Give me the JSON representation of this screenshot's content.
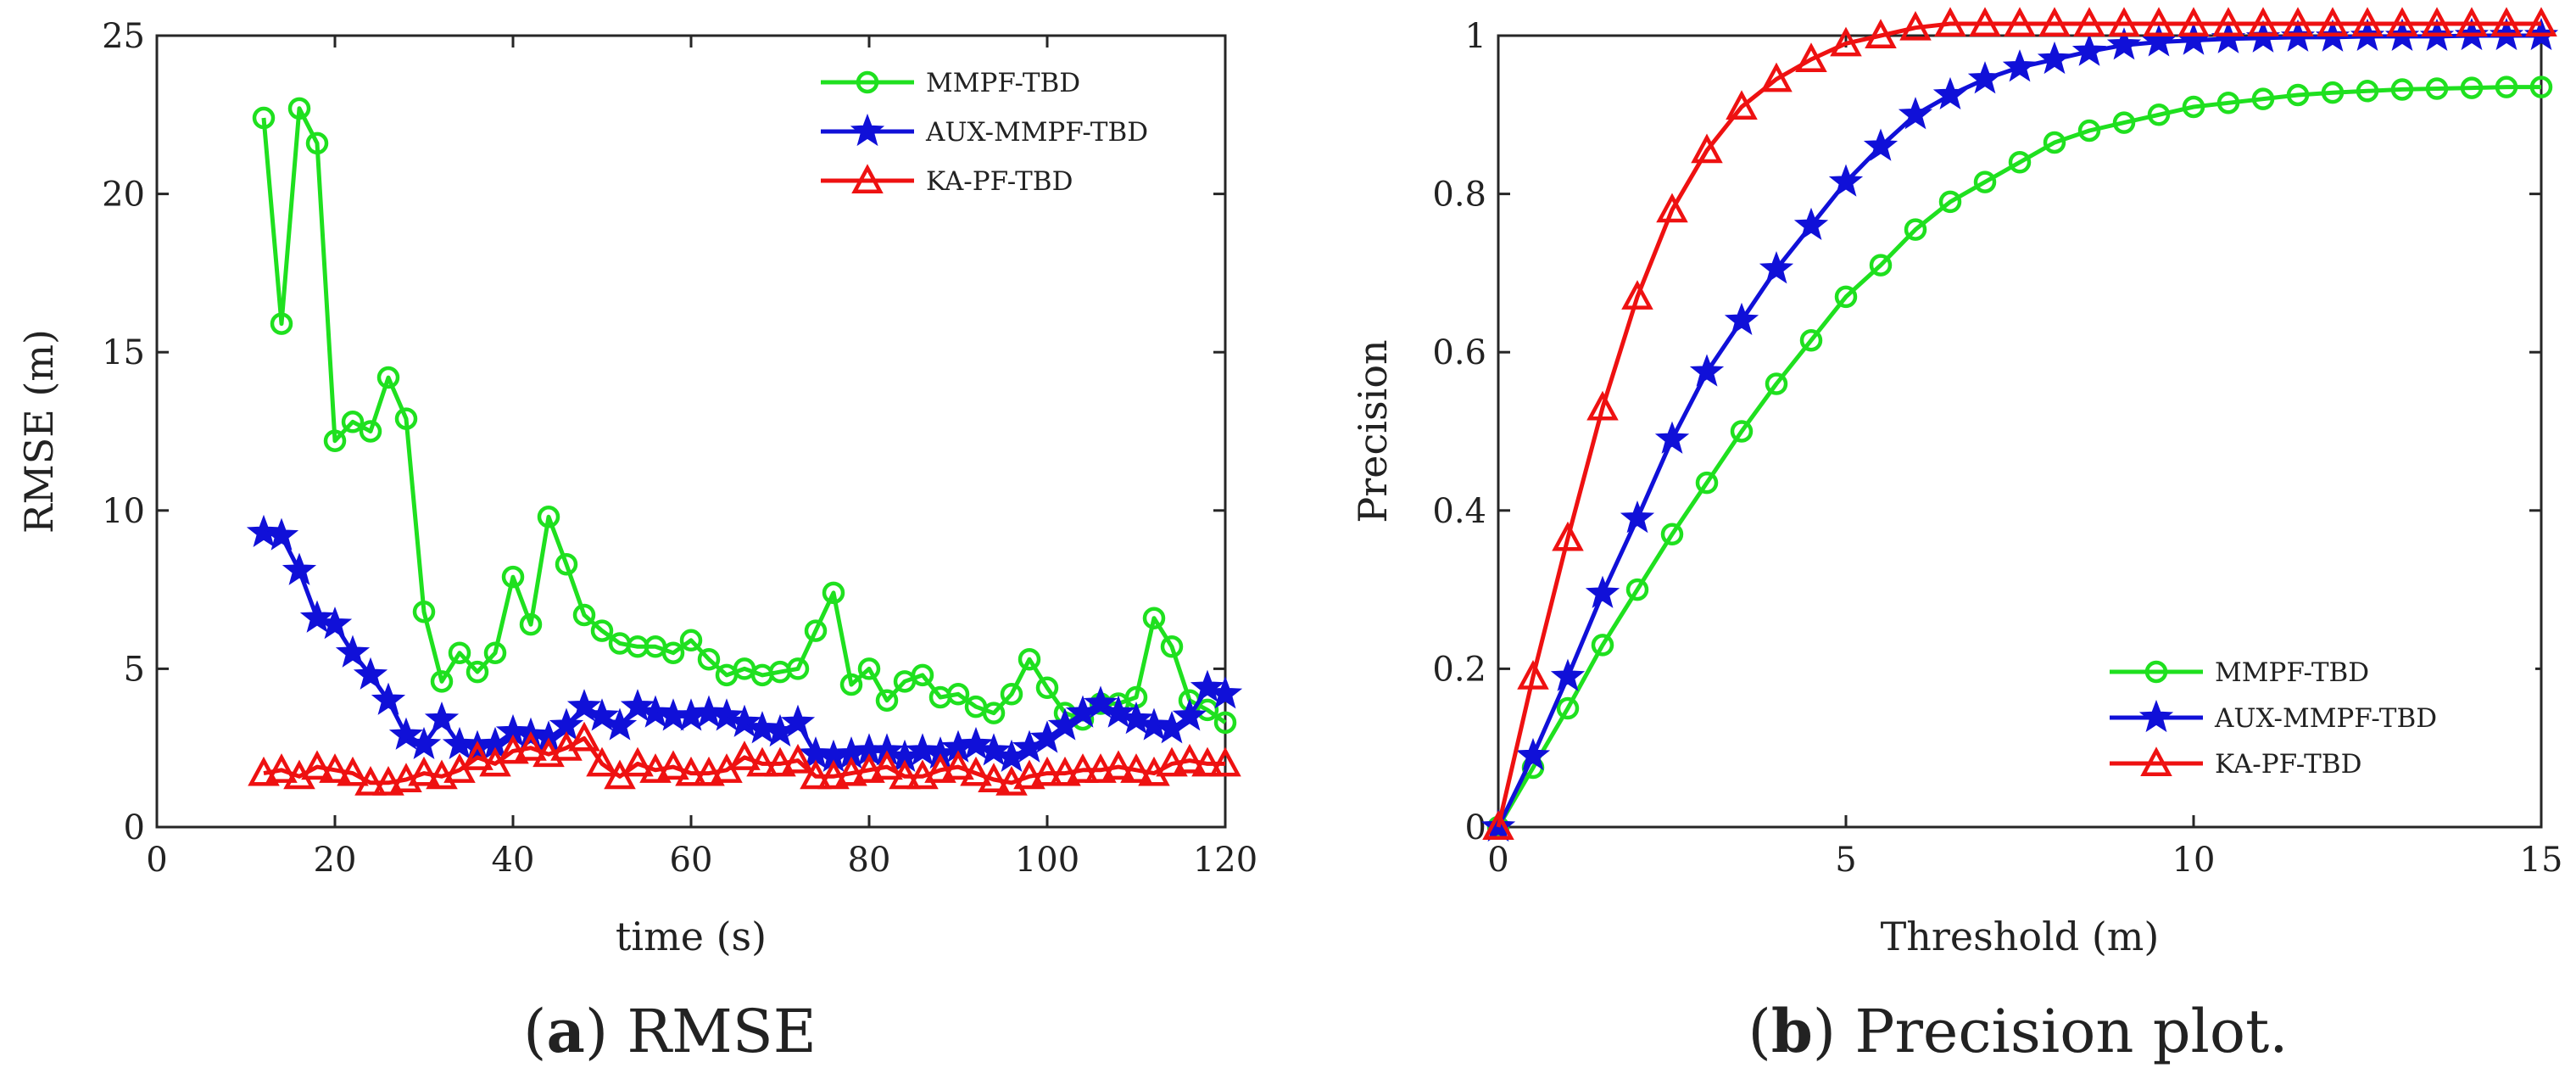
{
  "chart_data": [
    {
      "id": "a",
      "type": "line",
      "caption": {
        "letter": "a",
        "text": "RMSE"
      },
      "title": "",
      "xlabel": "time (s)",
      "ylabel": "RMSE (m)",
      "xlim": [
        0,
        120
      ],
      "ylim": [
        0,
        25
      ],
      "xticks": [
        0,
        20,
        40,
        60,
        80,
        100,
        120
      ],
      "yticks": [
        0,
        5,
        10,
        15,
        20,
        25
      ],
      "grid": false,
      "legend_position": "top-right",
      "x": [
        12,
        14,
        16,
        18,
        20,
        22,
        24,
        26,
        28,
        30,
        32,
        34,
        36,
        38,
        40,
        42,
        44,
        46,
        48,
        50,
        52,
        54,
        56,
        58,
        60,
        62,
        64,
        66,
        68,
        70,
        72,
        74,
        76,
        78,
        80,
        82,
        84,
        86,
        88,
        90,
        92,
        94,
        96,
        98,
        100,
        102,
        104,
        106,
        108,
        110,
        112,
        114,
        116,
        118,
        120
      ],
      "series": [
        {
          "name": "MMPF-TBD",
          "color": "#1fe01f",
          "marker": "circle",
          "values": [
            22.4,
            15.9,
            22.7,
            21.6,
            12.2,
            12.8,
            12.5,
            14.2,
            12.9,
            6.8,
            4.6,
            5.5,
            4.9,
            5.5,
            7.9,
            6.4,
            9.8,
            8.3,
            6.7,
            6.2,
            5.8,
            5.7,
            5.7,
            5.5,
            5.9,
            5.3,
            4.8,
            5.0,
            4.8,
            4.9,
            5.0,
            6.2,
            7.4,
            4.5,
            5.0,
            4.0,
            4.6,
            4.8,
            4.1,
            4.2,
            3.8,
            3.6,
            4.2,
            5.3,
            4.4,
            3.6,
            3.4,
            3.9,
            3.9,
            4.1,
            6.6,
            5.7,
            4.0,
            3.7,
            3.3
          ]
        },
        {
          "name": "AUX-MMPF-TBD",
          "color": "#1010d8",
          "marker": "star",
          "values": [
            9.3,
            9.2,
            8.1,
            6.6,
            6.4,
            5.5,
            4.8,
            4.0,
            2.9,
            2.6,
            3.4,
            2.6,
            2.5,
            2.6,
            3.0,
            2.9,
            2.8,
            3.2,
            3.8,
            3.5,
            3.2,
            3.8,
            3.6,
            3.5,
            3.5,
            3.6,
            3.5,
            3.3,
            3.1,
            3.0,
            3.3,
            2.3,
            2.2,
            2.3,
            2.4,
            2.4,
            2.2,
            2.4,
            2.3,
            2.5,
            2.6,
            2.4,
            2.2,
            2.5,
            2.8,
            3.2,
            3.6,
            3.9,
            3.6,
            3.4,
            3.2,
            3.1,
            3.5,
            4.4,
            4.2
          ]
        },
        {
          "name": "KA-PF-TBD",
          "color": "#ee1111",
          "marker": "triangle",
          "values": [
            1.7,
            1.8,
            1.6,
            1.9,
            1.8,
            1.7,
            1.4,
            1.4,
            1.5,
            1.7,
            1.6,
            1.8,
            2.2,
            2.0,
            2.4,
            2.5,
            2.3,
            2.5,
            2.8,
            2.0,
            1.6,
            2.0,
            1.8,
            1.9,
            1.7,
            1.7,
            1.8,
            2.2,
            2.0,
            2.0,
            2.1,
            1.6,
            1.6,
            1.7,
            1.8,
            1.9,
            1.6,
            1.6,
            1.8,
            1.9,
            1.7,
            1.5,
            1.4,
            1.6,
            1.7,
            1.7,
            1.8,
            1.8,
            1.9,
            1.8,
            1.7,
            2.0,
            2.1,
            2.0,
            2.0
          ]
        }
      ]
    },
    {
      "id": "b",
      "type": "line",
      "caption": {
        "letter": "b",
        "text": "Precision plot."
      },
      "title": "",
      "xlabel": "Threshold (m)",
      "ylabel": "Precision",
      "xlim": [
        0,
        15
      ],
      "ylim": [
        0,
        1
      ],
      "xticks": [
        0,
        5,
        10,
        15
      ],
      "yticks": [
        0,
        0.2,
        0.4,
        0.6,
        0.8,
        1
      ],
      "grid": false,
      "legend_position": "bottom-right",
      "x": [
        0,
        0.5,
        1,
        1.5,
        2,
        2.5,
        3,
        3.5,
        4,
        4.5,
        5,
        5.5,
        6,
        6.5,
        7,
        7.5,
        8,
        8.5,
        9,
        9.5,
        10,
        10.5,
        11,
        11.5,
        12,
        12.5,
        13,
        13.5,
        14,
        14.5,
        15
      ],
      "series": [
        {
          "name": "MMPF-TBD",
          "color": "#1fe01f",
          "marker": "circle",
          "values": [
            0,
            0.075,
            0.15,
            0.23,
            0.3,
            0.37,
            0.435,
            0.5,
            0.56,
            0.615,
            0.67,
            0.71,
            0.755,
            0.79,
            0.815,
            0.84,
            0.865,
            0.88,
            0.89,
            0.9,
            0.91,
            0.915,
            0.92,
            0.925,
            0.928,
            0.93,
            0.932,
            0.933,
            0.934,
            0.935,
            0.935
          ]
        },
        {
          "name": "AUX-MMPF-TBD",
          "color": "#1010d8",
          "marker": "star",
          "values": [
            0,
            0.09,
            0.19,
            0.295,
            0.39,
            0.49,
            0.575,
            0.64,
            0.705,
            0.76,
            0.815,
            0.86,
            0.9,
            0.925,
            0.945,
            0.96,
            0.97,
            0.98,
            0.988,
            0.992,
            0.994,
            0.996,
            0.997,
            0.998,
            0.998,
            0.999,
            0.999,
            0.999,
            1.0,
            1.0,
            1.0
          ]
        },
        {
          "name": "KA-PF-TBD",
          "color": "#ee1111",
          "marker": "triangle",
          "values": [
            0,
            0.19,
            0.365,
            0.53,
            0.67,
            0.78,
            0.855,
            0.91,
            0.945,
            0.97,
            0.99,
            1.0,
            1.01,
            1.015,
            1.015,
            1.015,
            1.015,
            1.015,
            1.015,
            1.015,
            1.015,
            1.015,
            1.015,
            1.015,
            1.015,
            1.015,
            1.015,
            1.015,
            1.015,
            1.015,
            1.015
          ]
        }
      ]
    }
  ]
}
